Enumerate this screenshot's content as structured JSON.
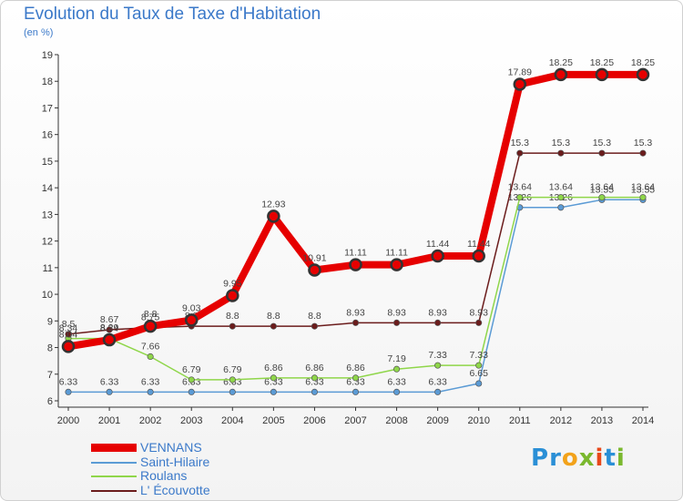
{
  "title": "Evolution du Taux de Taxe d'Habitation",
  "subtitle": "(en %)",
  "logo": {
    "text": "Proxiti",
    "letters": [
      "P",
      "r",
      "o",
      "x",
      "i",
      "t",
      "i"
    ],
    "colors": [
      "#2a8fd6",
      "#2a8fd6",
      "#f2a21a",
      "#7ab82e",
      "#e8481a",
      "#2a8fd6",
      "#7ab82e"
    ]
  },
  "chart_data": {
    "type": "line",
    "x": [
      "2000",
      "2001",
      "2002",
      "2003",
      "2004",
      "2005",
      "2006",
      "2007",
      "2008",
      "2009",
      "2010",
      "2011",
      "2012",
      "2013",
      "2014"
    ],
    "ylim": [
      6,
      19
    ],
    "yticks": [
      6,
      7,
      8,
      9,
      10,
      11,
      12,
      13,
      14,
      15,
      16,
      17,
      18,
      19
    ],
    "grid": false,
    "legend_position": "bottom-left",
    "series": [
      {
        "name": "VENNANS",
        "color": "#e60000",
        "values": [
          8.04,
          8.29,
          8.8,
          9.03,
          9.95,
          12.93,
          10.91,
          11.11,
          11.11,
          11.44,
          11.44,
          17.89,
          18.25,
          18.25,
          18.25
        ],
        "labels": [
          "8.04",
          "8.29",
          "8.8",
          "9.03",
          "9.95",
          "12.93",
          "10.91",
          "11.11",
          "11.11",
          "11.44",
          "11.44",
          "17.89",
          "18.25",
          "18.25",
          "18.25"
        ]
      },
      {
        "name": "Saint-Hilaire",
        "color": "#5b9bd5",
        "values": [
          6.33,
          6.33,
          6.33,
          6.33,
          6.33,
          6.33,
          6.33,
          6.33,
          6.33,
          6.33,
          6.65,
          13.26,
          13.26,
          13.55,
          13.55
        ],
        "labels": [
          "6.33",
          "6.33",
          "6.33",
          "6.33",
          "6.33",
          "6.33",
          "6.33",
          "6.33",
          "6.33",
          "6.33",
          "6.65",
          "13.26",
          "13.26",
          "13.55",
          "13.55"
        ]
      },
      {
        "name": "Roulans",
        "color": "#8fd64a",
        "values": [
          8.34,
          8.34,
          7.66,
          6.79,
          6.79,
          6.86,
          6.86,
          6.86,
          7.19,
          7.33,
          7.33,
          13.64,
          13.64,
          13.64,
          13.64
        ],
        "labels": [
          "8.34",
          "8.34",
          "7.66",
          "6.79",
          "6.79",
          "6.86",
          "6.86",
          "6.86",
          "7.19",
          "7.33",
          "7.33",
          "13.64",
          "13.64",
          "13.64",
          "13.64"
        ]
      },
      {
        "name": "L' Écouvotte",
        "color": "#6b1c1c",
        "values": [
          8.5,
          8.67,
          8.75,
          8.8,
          8.8,
          8.8,
          8.8,
          8.93,
          8.93,
          8.93,
          8.93,
          15.3,
          15.3,
          15.3,
          15.3
        ],
        "labels": [
          "8.5",
          "8.67",
          "8.75",
          "8.8",
          "8.8",
          "8.8",
          "8.8",
          "8.93",
          "8.93",
          "8.93",
          "8.93",
          "15.3",
          "15.3",
          "15.3",
          "15.3"
        ]
      }
    ]
  }
}
